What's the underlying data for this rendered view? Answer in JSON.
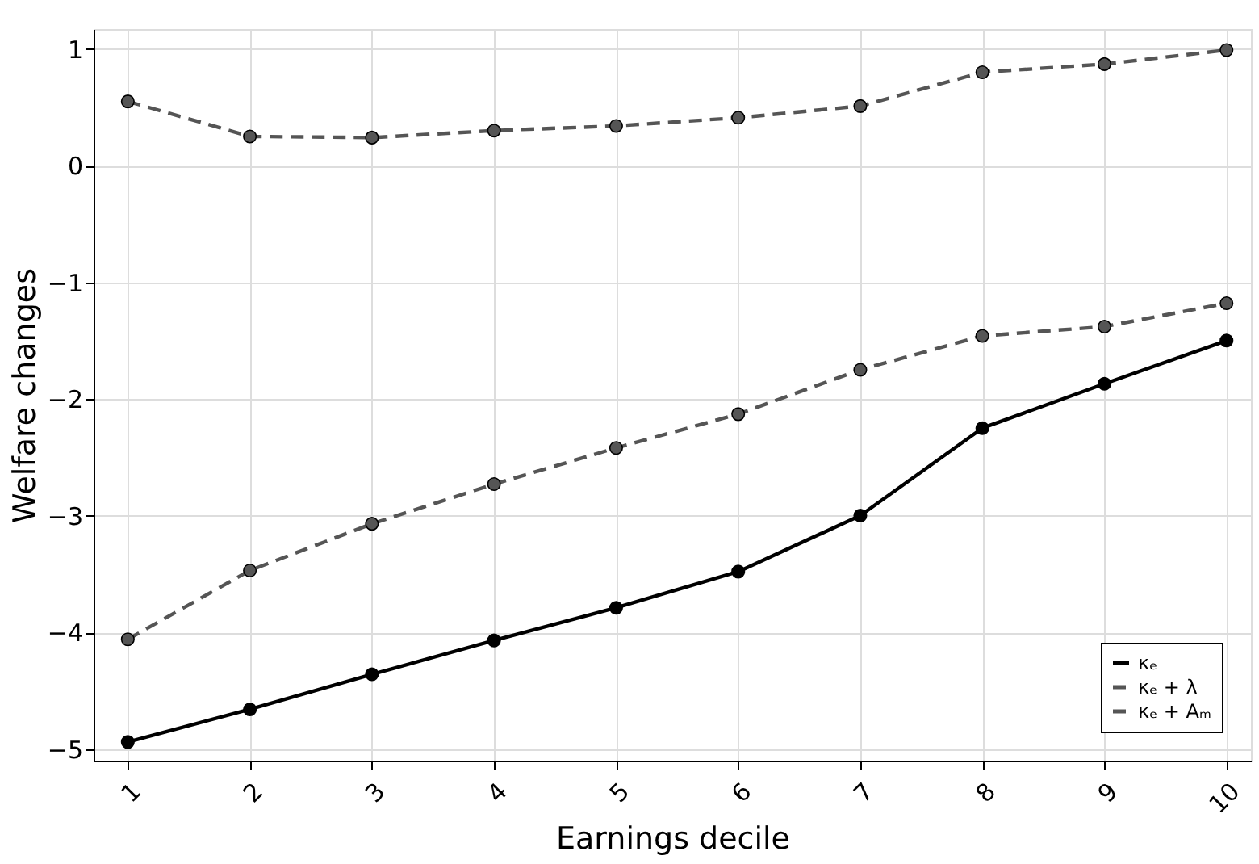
{
  "chart_data": {
    "type": "line",
    "xlabel": "Earnings decile",
    "ylabel": "Welfare changes",
    "x": [
      1,
      2,
      3,
      4,
      5,
      6,
      7,
      8,
      9,
      10
    ],
    "series": [
      {
        "name": "κₑ",
        "color": "#000000",
        "line_style": "solid",
        "values": [
          -4.94,
          -4.66,
          -4.36,
          -4.07,
          -3.79,
          -3.48,
          -3.0,
          -2.25,
          -1.87,
          -1.5
        ]
      },
      {
        "name": "κₑ + λ",
        "color": "#555555",
        "line_style": "dashed",
        "values": [
          -4.06,
          -3.47,
          -3.07,
          -2.73,
          -2.42,
          -2.13,
          -1.75,
          -1.46,
          -1.38,
          -1.18
        ]
      },
      {
        "name": "κₑ + Aₘ",
        "color": "#555555",
        "line_style": "dashed",
        "values": [
          0.55,
          0.25,
          0.24,
          0.3,
          0.34,
          0.41,
          0.51,
          0.8,
          0.87,
          0.99
        ]
      }
    ],
    "xlim": [
      0.72,
      10.2
    ],
    "ylim": [
      -5.1,
      1.17
    ],
    "xticks": [
      1,
      2,
      3,
      4,
      5,
      6,
      7,
      8,
      9,
      10
    ],
    "yticks": [
      -5,
      -4,
      -3,
      -2,
      -1,
      0,
      1
    ],
    "grid": true,
    "legend": "bottom right",
    "marker": "circle"
  }
}
